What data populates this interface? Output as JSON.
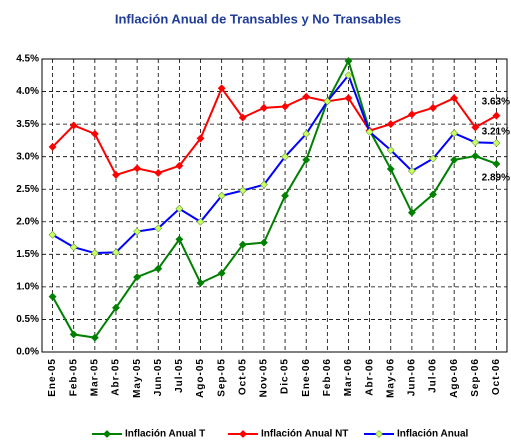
{
  "chart_data": {
    "type": "line",
    "title": "Inflación Anual de Transables y No Transables",
    "categories": [
      "Ene-05",
      "Feb-05",
      "Mar-05",
      "Abr-05",
      "May-05",
      "Jun-05",
      "Jul-05",
      "Ago-05",
      "Sep-05",
      "Oct-05",
      "Nov-05",
      "Dic-05",
      "Ene-06",
      "Feb-06",
      "Mar-06",
      "Abr-06",
      "May-06",
      "Jun-06",
      "Jul-06",
      "Ago-06",
      "Sep-06",
      "Oct-06"
    ],
    "series": [
      {
        "name": "Inflación Anual T",
        "color": "#008000",
        "marker_color": "#008000",
        "values": [
          0.85,
          0.27,
          0.22,
          0.68,
          1.15,
          1.28,
          1.73,
          1.06,
          1.21,
          1.65,
          1.68,
          2.4,
          2.95,
          3.85,
          4.47,
          3.4,
          2.81,
          2.14,
          2.42,
          2.95,
          3.01,
          2.89
        ],
        "value_labels": [
          null,
          null,
          null,
          null,
          null,
          null,
          null,
          null,
          null,
          null,
          null,
          null,
          null,
          null,
          null,
          null,
          null,
          null,
          null,
          null,
          null,
          "2.89%"
        ]
      },
      {
        "name": "Inflación Anual NT",
        "color": "#ff0000",
        "marker_color": "#ff0000",
        "values": [
          3.15,
          3.48,
          3.35,
          2.72,
          2.82,
          2.75,
          2.86,
          3.28,
          4.05,
          3.6,
          3.75,
          3.77,
          3.92,
          3.85,
          3.9,
          3.4,
          3.5,
          3.65,
          3.75,
          3.9,
          3.45,
          3.63
        ],
        "value_labels": [
          null,
          null,
          null,
          null,
          null,
          null,
          null,
          null,
          null,
          null,
          null,
          null,
          null,
          null,
          null,
          null,
          null,
          null,
          null,
          null,
          null,
          "3.63%"
        ]
      },
      {
        "name": "Inflación Anual",
        "color": "#0000ff",
        "marker_color": "#ccff66",
        "values": [
          1.8,
          1.61,
          1.52,
          1.53,
          1.85,
          1.9,
          2.2,
          2.0,
          2.4,
          2.48,
          2.57,
          3.0,
          3.35,
          3.85,
          4.25,
          3.38,
          3.1,
          2.78,
          2.97,
          3.36,
          3.22,
          3.21
        ],
        "value_labels": [
          null,
          null,
          null,
          null,
          null,
          null,
          null,
          null,
          null,
          null,
          null,
          null,
          null,
          null,
          null,
          null,
          null,
          null,
          null,
          null,
          null,
          "3.21%"
        ]
      }
    ],
    "ylim": [
      0,
      4.5
    ],
    "yticks": [
      {
        "value": 0,
        "label": "0.0%"
      },
      {
        "value": 0.5,
        "label": "0.5%"
      },
      {
        "value": 1,
        "label": "1.0%"
      },
      {
        "value": 1.5,
        "label": "1.5%"
      },
      {
        "value": 2,
        "label": "2.0%"
      },
      {
        "value": 2.5,
        "label": "2.5%"
      },
      {
        "value": 3,
        "label": "3.0%"
      },
      {
        "value": 3.5,
        "label": "3.5%"
      },
      {
        "value": 4,
        "label": "4.0%"
      },
      {
        "value": 4.5,
        "label": "4.5%"
      }
    ],
    "grid": true,
    "legend": "bottom"
  }
}
